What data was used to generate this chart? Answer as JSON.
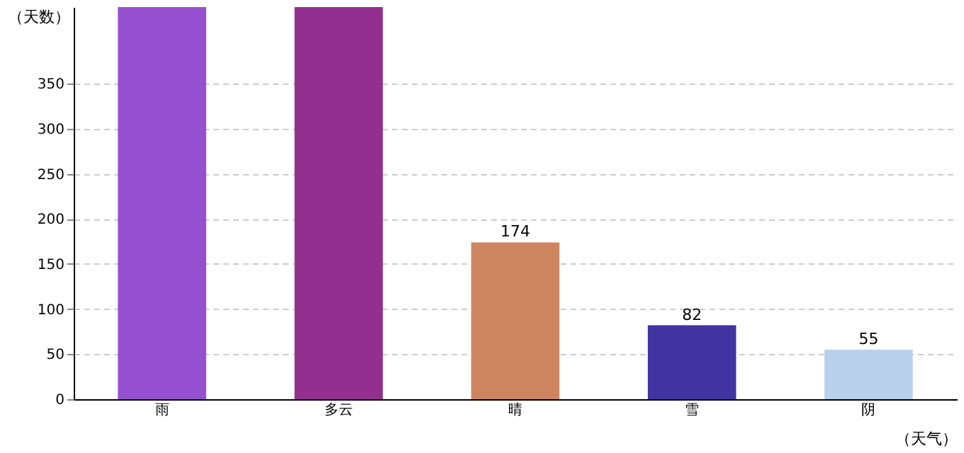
{
  "chart_data": {
    "type": "bar",
    "xlabel": "（天气）",
    "ylabel": "（天数）",
    "categories": [
      "雨",
      "多云",
      "晴",
      "雪",
      "阴"
    ],
    "values": [
      435,
      435,
      174,
      82,
      55
    ],
    "colors": [
      "#9550cf",
      "#93308f",
      "#cd8560",
      "#4133a0",
      "#b9d1ea"
    ],
    "value_labels": [
      null,
      null,
      "174",
      "82",
      "55"
    ],
    "ylim": [
      0,
      435
    ],
    "yticks": [
      0,
      50,
      100,
      150,
      200,
      250,
      300,
      350
    ],
    "grid": "y",
    "legend": false
  }
}
